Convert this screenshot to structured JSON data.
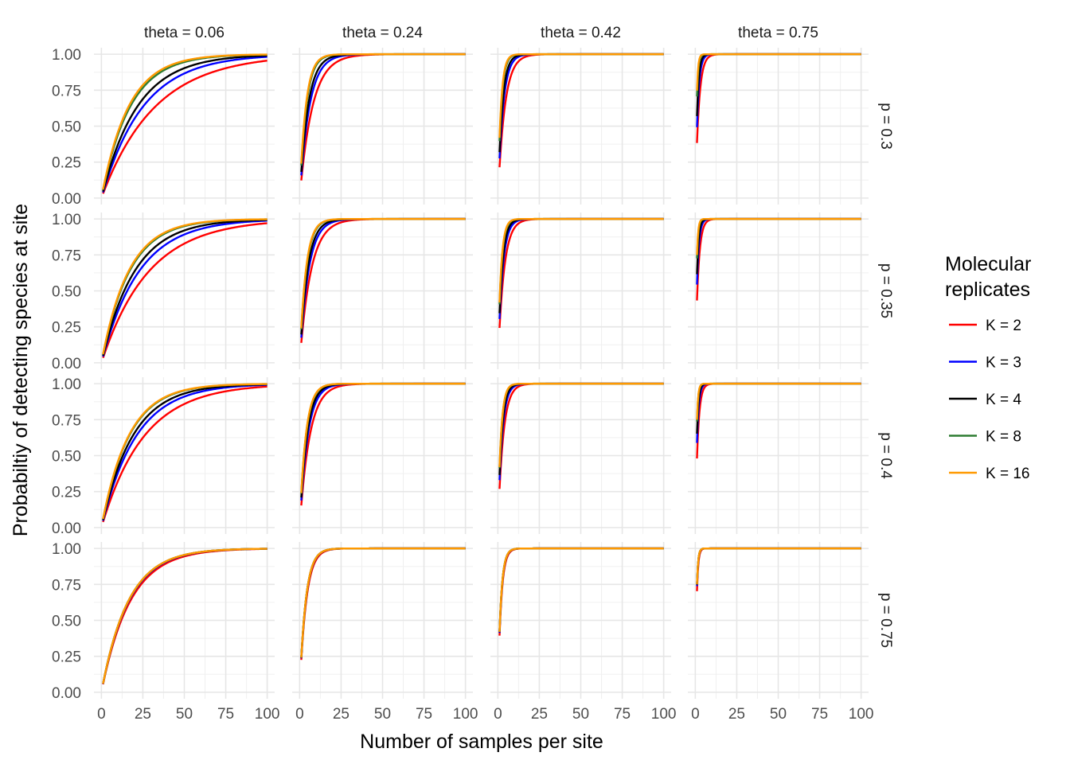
{
  "chart_data": {
    "type": "line",
    "facet_columns": [
      "theta = 0.06",
      "theta = 0.24",
      "theta = 0.42",
      "theta = 0.75"
    ],
    "facet_rows": [
      "p = 0.3",
      "p = 0.35",
      "p = 0.4",
      "p = 0.75"
    ],
    "theta_values": [
      0.06,
      0.24,
      0.42,
      0.75
    ],
    "p_values": [
      0.3,
      0.35,
      0.4,
      0.75
    ],
    "xlabel": "Number of samples per site",
    "ylabel": "Probabiltiy of detecting species at site",
    "xlim": [
      0,
      100
    ],
    "ylim": [
      0,
      1
    ],
    "x_ticks": [
      "0",
      "25",
      "50",
      "75",
      "100"
    ],
    "y_ticks": [
      "0.00",
      "0.25",
      "0.50",
      "0.75",
      "1.00"
    ],
    "x_range": [
      1,
      100
    ],
    "grid": true,
    "legend": {
      "title_line1": "Molecular",
      "title_line2": "replicates",
      "placement": "right"
    },
    "series": [
      {
        "name": "K = 2",
        "K": 2,
        "color": "#ff0000"
      },
      {
        "name": "K = 3",
        "K": 3,
        "color": "#0000ff"
      },
      {
        "name": "K = 4",
        "K": 4,
        "color": "#000000"
      },
      {
        "name": "K = 8",
        "K": 8,
        "color": "#2e7d32"
      },
      {
        "name": "K = 16",
        "K": 16,
        "color": "#ff9900"
      }
    ]
  }
}
